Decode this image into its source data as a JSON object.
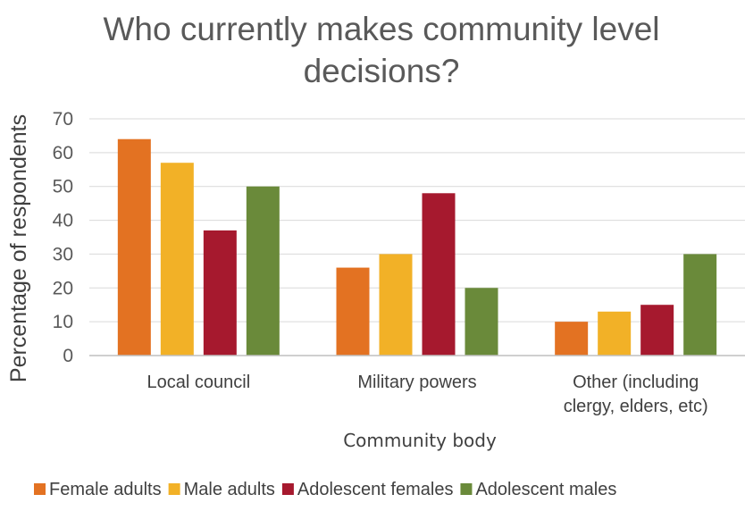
{
  "chart_data": {
    "type": "bar",
    "title": [
      "Who currently makes community level",
      "decisions?"
    ],
    "xlabel": "Community body",
    "ylabel": "Percentage of respondents",
    "ylim": [
      0,
      70
    ],
    "yticks": [
      0,
      10,
      20,
      30,
      40,
      50,
      60,
      70
    ],
    "grid": true,
    "legend_position": "bottom",
    "categories": [
      [
        "Local council"
      ],
      [
        "Military powers"
      ],
      [
        "Other (including",
        "clergy, elders, etc)"
      ]
    ],
    "series": [
      {
        "name": "Female adults",
        "color": "#E37222",
        "values": [
          64,
          26,
          10
        ]
      },
      {
        "name": "Male adults",
        "color": "#F2B127",
        "values": [
          57,
          30,
          13
        ]
      },
      {
        "name": "Adolescent females",
        "color": "#A6192E",
        "values": [
          37,
          48,
          15
        ]
      },
      {
        "name": "Adolescent males",
        "color": "#6A8A3A",
        "values": [
          50,
          20,
          30
        ]
      }
    ]
  }
}
